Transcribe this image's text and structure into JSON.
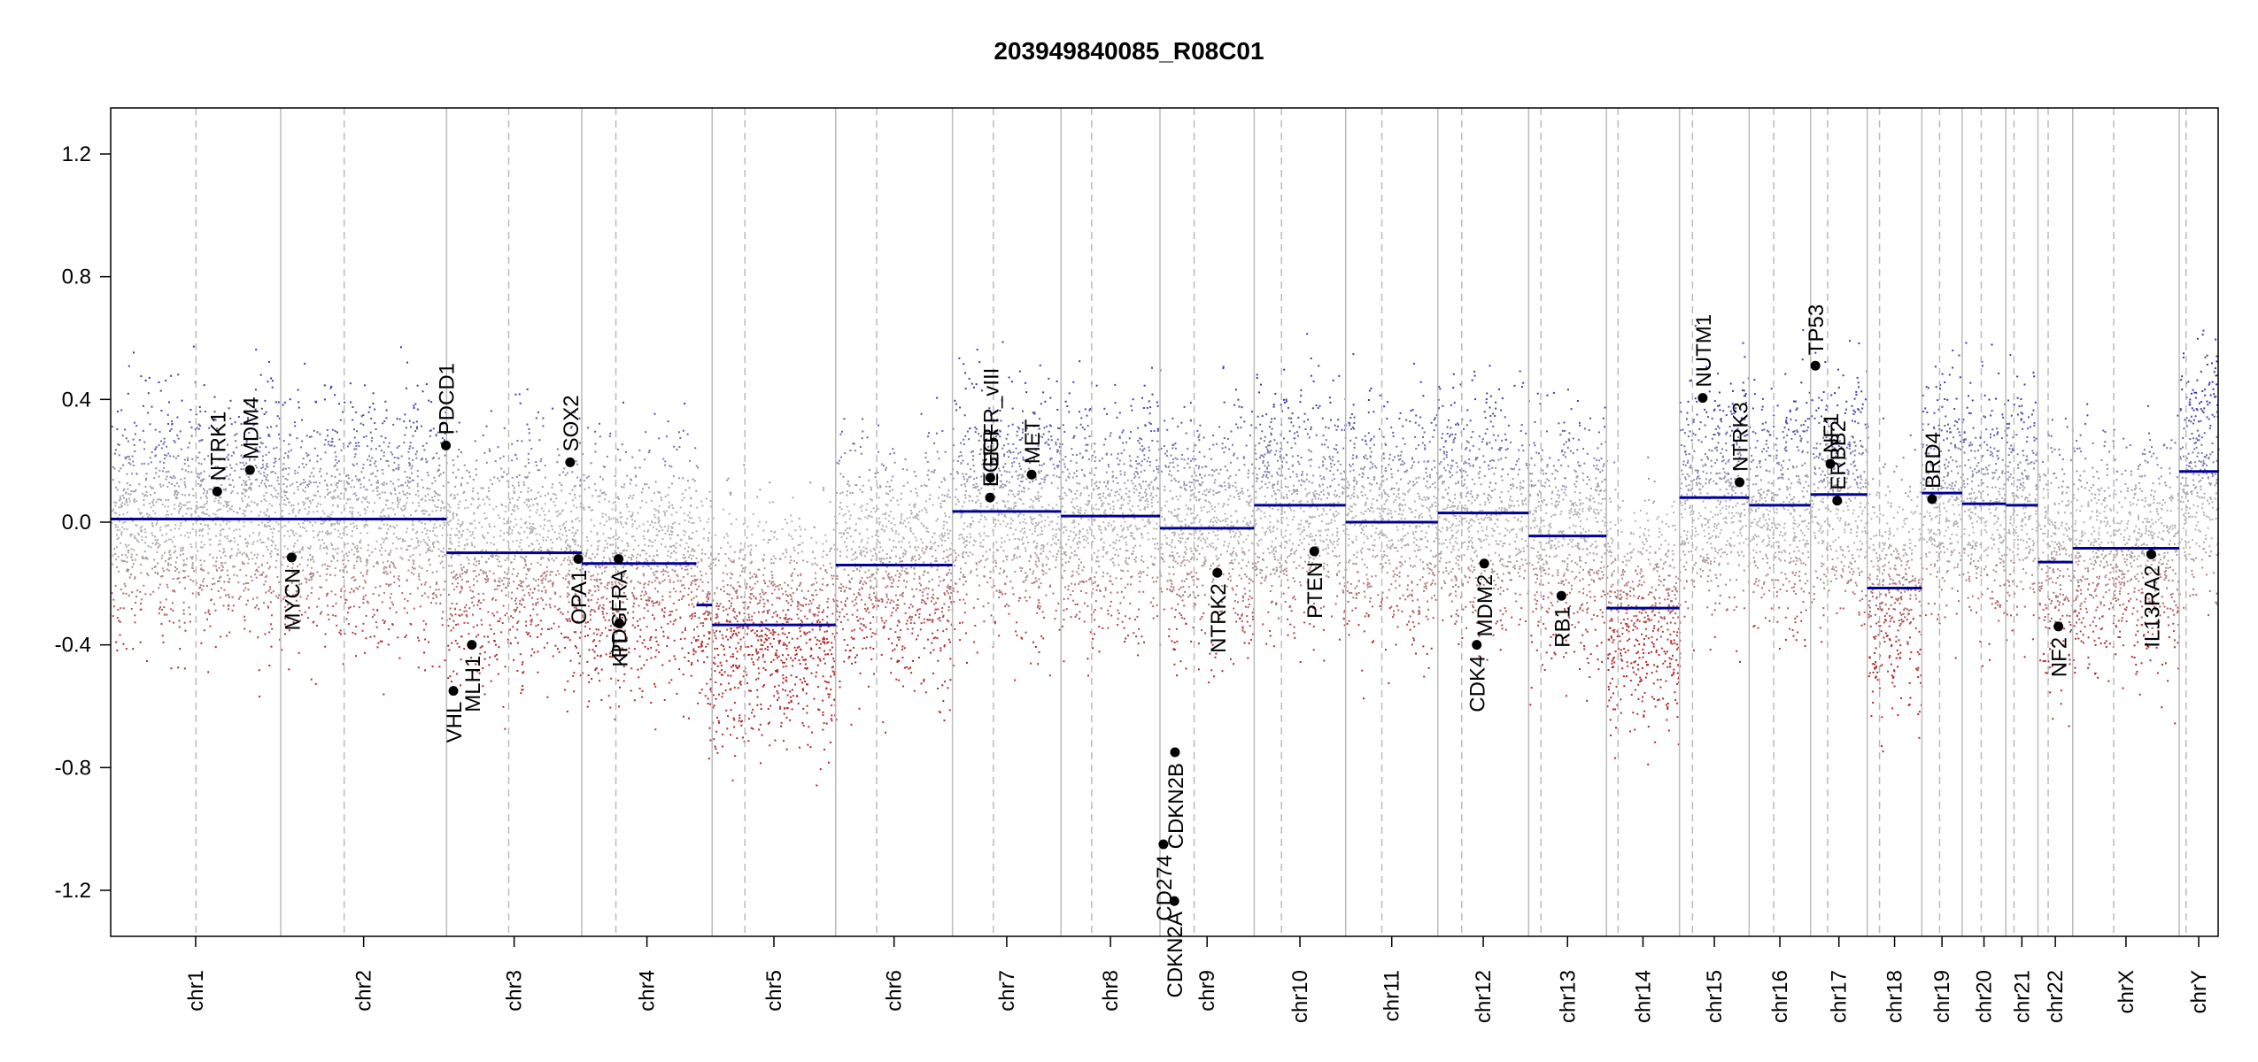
{
  "chart_data": {
    "type": "scatter",
    "title": "203949840085_R08C01",
    "xlabel": "",
    "ylabel": "",
    "ylim": [
      -1.35,
      1.35
    ],
    "yticks": [
      -1.2,
      -0.8,
      -0.4,
      0.0,
      0.4,
      0.8,
      1.2
    ],
    "ytick_labels": [
      "-1.2",
      "-0.8",
      "-0.4",
      "0.0",
      "0.4",
      "0.8",
      "1.2"
    ],
    "grid": false,
    "chromosomes": [
      {
        "name": "chr1",
        "len": 249,
        "centromere": 125
      },
      {
        "name": "chr2",
        "len": 243,
        "centromere": 93
      },
      {
        "name": "chr3",
        "len": 198,
        "centromere": 91
      },
      {
        "name": "chr4",
        "len": 191,
        "centromere": 50
      },
      {
        "name": "chr5",
        "len": 181,
        "centromere": 48
      },
      {
        "name": "chr6",
        "len": 171,
        "centromere": 60
      },
      {
        "name": "chr7",
        "len": 159,
        "centromere": 60
      },
      {
        "name": "chr8",
        "len": 145,
        "centromere": 45
      },
      {
        "name": "chr9",
        "len": 138,
        "centromere": 50
      },
      {
        "name": "chr10",
        "len": 134,
        "centromere": 40
      },
      {
        "name": "chr11",
        "len": 135,
        "centromere": 53
      },
      {
        "name": "chr12",
        "len": 133,
        "centromere": 35
      },
      {
        "name": "chr13",
        "len": 114,
        "centromere": 18
      },
      {
        "name": "chr14",
        "len": 107,
        "centromere": 17
      },
      {
        "name": "chr15",
        "len": 102,
        "centromere": 19
      },
      {
        "name": "chr16",
        "len": 90,
        "centromere": 36
      },
      {
        "name": "chr17",
        "len": 83,
        "centromere": 25
      },
      {
        "name": "chr18",
        "len": 80,
        "centromere": 18
      },
      {
        "name": "chr19",
        "len": 59,
        "centromere": 26
      },
      {
        "name": "chr20",
        "len": 64,
        "centromere": 28
      },
      {
        "name": "chr21",
        "len": 47,
        "centromere": 12
      },
      {
        "name": "chr22",
        "len": 51,
        "centromere": 15
      },
      {
        "name": "chrX",
        "len": 156,
        "centromere": 60
      },
      {
        "name": "chrY",
        "len": 57,
        "centromere": 10
      }
    ],
    "segments": [
      {
        "chr": "chr1",
        "start": 0,
        "end": 249,
        "value": 0.01
      },
      {
        "chr": "chr2",
        "start": 0,
        "end": 243,
        "value": 0.01
      },
      {
        "chr": "chr3",
        "start": 0,
        "end": 198,
        "value": -0.1
      },
      {
        "chr": "chr4",
        "start": 0,
        "end": 168,
        "value": -0.135
      },
      {
        "chr": "chr4",
        "start": 168,
        "end": 191,
        "value": -0.27
      },
      {
        "chr": "chr5",
        "start": 0,
        "end": 181,
        "value": -0.335
      },
      {
        "chr": "chr6",
        "start": 0,
        "end": 171,
        "value": -0.14
      },
      {
        "chr": "chr7",
        "start": 0,
        "end": 159,
        "value": 0.035
      },
      {
        "chr": "chr8",
        "start": 0,
        "end": 145,
        "value": 0.02
      },
      {
        "chr": "chr9",
        "start": 0,
        "end": 138,
        "value": -0.02
      },
      {
        "chr": "chr10",
        "start": 0,
        "end": 134,
        "value": 0.055
      },
      {
        "chr": "chr11",
        "start": 0,
        "end": 135,
        "value": 0.0
      },
      {
        "chr": "chr12",
        "start": 0,
        "end": 133,
        "value": 0.03
      },
      {
        "chr": "chr13",
        "start": 0,
        "end": 114,
        "value": -0.045
      },
      {
        "chr": "chr14",
        "start": 0,
        "end": 107,
        "value": -0.28
      },
      {
        "chr": "chr15",
        "start": 0,
        "end": 102,
        "value": 0.08
      },
      {
        "chr": "chr16",
        "start": 0,
        "end": 90,
        "value": 0.055
      },
      {
        "chr": "chr17",
        "start": 0,
        "end": 83,
        "value": 0.09
      },
      {
        "chr": "chr18",
        "start": 0,
        "end": 80,
        "value": -0.215
      },
      {
        "chr": "chr19",
        "start": 0,
        "end": 59,
        "value": 0.095
      },
      {
        "chr": "chr20",
        "start": 0,
        "end": 64,
        "value": 0.06
      },
      {
        "chr": "chr21",
        "start": 0,
        "end": 47,
        "value": 0.055
      },
      {
        "chr": "chr22",
        "start": 0,
        "end": 51,
        "value": -0.13
      },
      {
        "chr": "chrX",
        "start": 0,
        "end": 156,
        "value": -0.085
      },
      {
        "chr": "chrY",
        "start": 0,
        "end": 57,
        "value": 0.165
      }
    ],
    "genes": [
      {
        "name": "NTRK1",
        "chr": "chr1",
        "pos": 156,
        "value": 0.1
      },
      {
        "name": "MDM4",
        "chr": "chr1",
        "pos": 204,
        "value": 0.17
      },
      {
        "name": "MYCN",
        "chr": "chr2",
        "pos": 16,
        "value": -0.115
      },
      {
        "name": "PDCD1",
        "chr": "chr2",
        "pos": 242,
        "value": 0.25
      },
      {
        "name": "VHL",
        "chr": "chr3",
        "pos": 10,
        "value": -0.55
      },
      {
        "name": "MLH1",
        "chr": "chr3",
        "pos": 37,
        "value": -0.4
      },
      {
        "name": "SOX2",
        "chr": "chr3",
        "pos": 181,
        "value": 0.195
      },
      {
        "name": "OPA1",
        "chr": "chr3",
        "pos": 193,
        "value": -0.12
      },
      {
        "name": "KIT",
        "chr": "chr4",
        "pos": 55,
        "value": -0.33
      },
      {
        "name": "PDGFRA",
        "chr": "chr4",
        "pos": 54,
        "value": -0.12
      },
      {
        "name": "EGFR",
        "chr": "chr7",
        "pos": 55,
        "value": 0.08
      },
      {
        "name": "EGFR_vIII",
        "chr": "chr7",
        "pos": 55.5,
        "value": 0.145
      },
      {
        "name": "MET",
        "chr": "chr7",
        "pos": 116,
        "value": 0.155
      },
      {
        "name": "CD274",
        "chr": "chr9",
        "pos": 5,
        "value": -1.05
      },
      {
        "name": "CDKN2A",
        "chr": "chr9",
        "pos": 21,
        "value": -1.235
      },
      {
        "name": "CDKN2B",
        "chr": "chr9",
        "pos": 22,
        "value": -0.75
      },
      {
        "name": "NTRK2",
        "chr": "chr9",
        "pos": 84,
        "value": -0.165
      },
      {
        "name": "PTEN",
        "chr": "chr10",
        "pos": 88,
        "value": -0.095
      },
      {
        "name": "CDK4",
        "chr": "chr12",
        "pos": 57,
        "value": -0.4
      },
      {
        "name": "MDM2",
        "chr": "chr12",
        "pos": 68,
        "value": -0.135
      },
      {
        "name": "RB1",
        "chr": "chr13",
        "pos": 48,
        "value": -0.24
      },
      {
        "name": "NUTM1",
        "chr": "chr15",
        "pos": 34,
        "value": 0.405
      },
      {
        "name": "NTRK3",
        "chr": "chr15",
        "pos": 88,
        "value": 0.13
      },
      {
        "name": "TP53",
        "chr": "chr17",
        "pos": 7,
        "value": 0.51
      },
      {
        "name": "NF1",
        "chr": "chr17",
        "pos": 29,
        "value": 0.19
      },
      {
        "name": "ERBB2",
        "chr": "chr17",
        "pos": 39,
        "value": 0.07
      },
      {
        "name": "BRD4",
        "chr": "chr19",
        "pos": 15,
        "value": 0.075
      },
      {
        "name": "NF2",
        "chr": "chr22",
        "pos": 30,
        "value": -0.34
      },
      {
        "name": "IL13RA2",
        "chrX": "chrX",
        "chr": "chrX",
        "pos": 115,
        "value": -0.105
      }
    ],
    "colors": {
      "positive": "#3a3ab0",
      "neutral": "#b4b4b4",
      "negative": "#b02a2a",
      "segment": "#000096",
      "gene": "#000000",
      "border": "#bbbbbb"
    }
  }
}
